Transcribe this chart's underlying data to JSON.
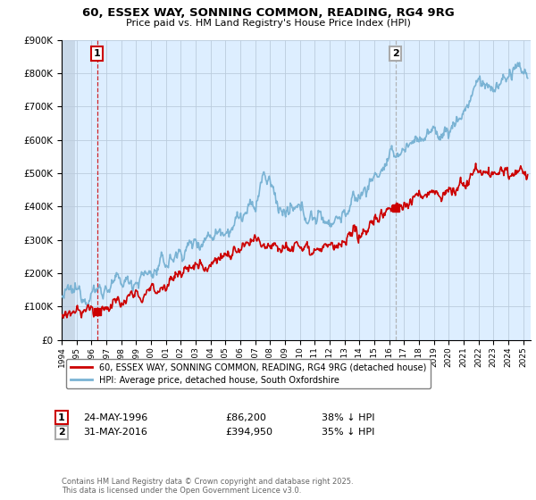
{
  "title": "60, ESSEX WAY, SONNING COMMON, READING, RG4 9RG",
  "subtitle": "Price paid vs. HM Land Registry's House Price Index (HPI)",
  "legend_entry1": "60, ESSEX WAY, SONNING COMMON, READING, RG4 9RG (detached house)",
  "legend_entry2": "HPI: Average price, detached house, South Oxfordshire",
  "footnote": "Contains HM Land Registry data © Crown copyright and database right 2025.\nThis data is licensed under the Open Government Licence v3.0.",
  "transaction1": {
    "label": "1",
    "date": "24-MAY-1996",
    "price": "£86,200",
    "note": "38% ↓ HPI",
    "year": 1996.38
  },
  "transaction2": {
    "label": "2",
    "date": "31-MAY-2016",
    "price": "£394,950",
    "note": "35% ↓ HPI",
    "year": 2016.41
  },
  "hpi_color": "#7ab3d4",
  "price_color": "#cc0000",
  "marker1_color": "#cc0000",
  "marker2_color": "#aaaaaa",
  "plot_bg_color": "#ddeeff",
  "background_color": "#ffffff",
  "grid_color": "#bbccdd",
  "ylim": [
    0,
    900000
  ],
  "xlim_start": 1994,
  "xlim_end": 2025.5,
  "t1_price": 86200,
  "t2_price": 394950
}
